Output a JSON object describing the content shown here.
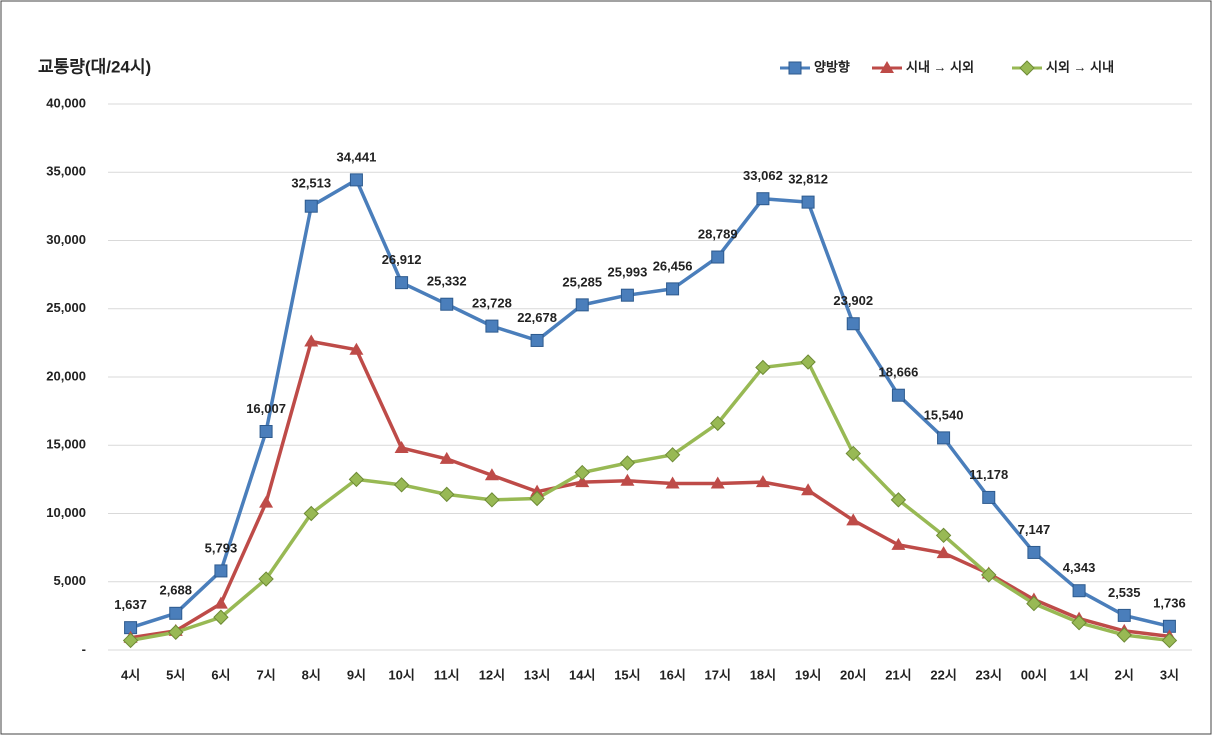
{
  "chart_data": {
    "type": "line",
    "title": "교통량(대/24시)",
    "categories": [
      "4시",
      "5시",
      "6시",
      "7시",
      "8시",
      "9시",
      "10시",
      "11시",
      "12시",
      "13시",
      "14시",
      "15시",
      "16시",
      "17시",
      "18시",
      "19시",
      "20시",
      "21시",
      "22시",
      "23시",
      "00시",
      "1시",
      "2시",
      "3시"
    ],
    "series": [
      {
        "name": "양방향",
        "color": "#4a7ebb",
        "marker": "square",
        "values": [
          1637,
          2688,
          5793,
          16007,
          32513,
          34441,
          26912,
          25332,
          23728,
          22678,
          25285,
          25993,
          26456,
          28789,
          33062,
          32812,
          23902,
          18666,
          15540,
          11178,
          7147,
          4343,
          2535,
          1736
        ],
        "value_labels": [
          "1,637",
          "2,688",
          "5,793",
          "16,007",
          "32,513",
          "34,441",
          "26,912",
          "25,332",
          "23,728",
          "22,678",
          "25,285",
          "25,993",
          "26,456",
          "28,789",
          "33,062",
          "32,812",
          "23,902",
          "18,666",
          "15,540",
          "11,178",
          "7,147",
          "4,343",
          "2,535",
          "1,736"
        ]
      },
      {
        "name": "시내 → 시외",
        "color": "#be4b48",
        "marker": "triangle",
        "values": [
          900,
          1400,
          3400,
          10800,
          22600,
          22000,
          14800,
          14000,
          12800,
          11600,
          12300,
          12400,
          12200,
          12200,
          12300,
          11700,
          9500,
          7700,
          7100,
          5600,
          3700,
          2300,
          1400,
          1000
        ]
      },
      {
        "name": "시외 → 시내",
        "color": "#98b954",
        "marker": "diamond",
        "values": [
          700,
          1300,
          2400,
          5200,
          10000,
          12500,
          12100,
          11400,
          11000,
          11100,
          13000,
          13700,
          14300,
          16600,
          20700,
          21100,
          14400,
          11000,
          8400,
          5500,
          3400,
          2000,
          1100,
          700
        ]
      }
    ],
    "ylim": [
      0,
      40000
    ],
    "yticks": [
      {
        "value": 0,
        "label": "-"
      },
      {
        "value": 5000,
        "label": "5,000"
      },
      {
        "value": 10000,
        "label": "10,000"
      },
      {
        "value": 15000,
        "label": "15,000"
      },
      {
        "value": 20000,
        "label": "20,000"
      },
      {
        "value": 25000,
        "label": "25,000"
      },
      {
        "value": 30000,
        "label": "30,000"
      },
      {
        "value": 35000,
        "label": "35,000"
      },
      {
        "value": 40000,
        "label": "40,000"
      }
    ],
    "grid": true,
    "legend": "top-right"
  }
}
